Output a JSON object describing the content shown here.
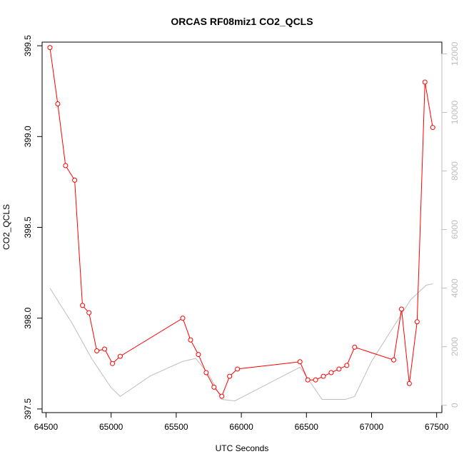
{
  "chart_data": {
    "type": "line",
    "title": "ORCAS RF08miz1 CO2_QCLS",
    "xlabel": "UTC Seconds",
    "ylabel": "CO2_QCLS",
    "xlim": [
      64470,
      67540
    ],
    "ylim": [
      397.48,
      399.52
    ],
    "y2lim": [
      -250,
      12400
    ],
    "x_ticks": [
      64500,
      65000,
      65500,
      66000,
      66500,
      67000,
      67500
    ],
    "y_ticks": [
      397.5,
      398.0,
      398.5,
      399.0,
      399.5
    ],
    "y2_ticks": [
      0,
      2000,
      4000,
      6000,
      8000,
      10000,
      12000
    ],
    "colors": {
      "co2": "#ff0000",
      "altitude": "#bebebe",
      "axes": "#000000"
    },
    "grid": false,
    "legend": "none",
    "series": [
      {
        "axis": "left",
        "color": "#ff0000",
        "markers": "open-circle",
        "x": [
          64530,
          64590,
          64650,
          64720,
          64780,
          64830,
          64890,
          64950,
          65010,
          65070,
          65550,
          65610,
          65670,
          65730,
          65790,
          65850,
          65910,
          65970,
          66450,
          66510,
          66570,
          66630,
          66690,
          66750,
          66810,
          66870,
          67170,
          67230,
          67290,
          67350,
          67410,
          67470
        ],
        "y": [
          399.49,
          399.18,
          398.84,
          398.76,
          398.07,
          398.03,
          397.82,
          397.83,
          397.75,
          397.79,
          398.0,
          397.88,
          397.8,
          397.7,
          397.62,
          397.57,
          397.68,
          397.72,
          397.76,
          397.66,
          397.66,
          397.68,
          397.7,
          397.72,
          397.74,
          397.84,
          397.77,
          398.05,
          397.64,
          397.98,
          399.3,
          399.05
        ]
      },
      {
        "axis": "right",
        "color": "#bebebe",
        "markers": "none",
        "x": [
          64530,
          64700,
          64850,
          65000,
          65070,
          65300,
          65550,
          65650,
          65750,
          65850,
          65950,
          66450,
          66620,
          66800,
          66870,
          67000,
          67300,
          67420,
          67470
        ],
        "y": [
          4000,
          2800,
          1600,
          600,
          300,
          1000,
          1500,
          1600,
          1050,
          200,
          150,
          1300,
          200,
          200,
          300,
          1500,
          3600,
          4100,
          4150
        ]
      }
    ]
  }
}
